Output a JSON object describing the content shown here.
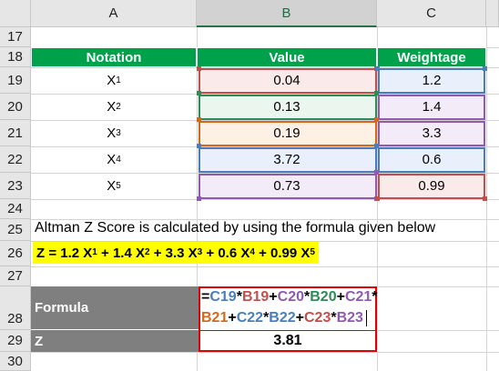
{
  "columns": [
    "A",
    "B",
    "C"
  ],
  "rows": [
    "17",
    "18",
    "19",
    "20",
    "21",
    "22",
    "23",
    "24",
    "25",
    "26",
    "27",
    "28",
    "29",
    "30"
  ],
  "table": {
    "headers": [
      "Notation",
      "Value",
      "Weightage"
    ],
    "rows": [
      {
        "notation": "X",
        "sub": "1",
        "value": "0.04",
        "weight": "1.2"
      },
      {
        "notation": "X",
        "sub": "2",
        "value": "0.13",
        "weight": "1.4"
      },
      {
        "notation": "X",
        "sub": "3",
        "value": "0.19",
        "weight": "3.3"
      },
      {
        "notation": "X",
        "sub": "4",
        "value": "3.72",
        "weight": "0.6"
      },
      {
        "notation": "X",
        "sub": "5",
        "value": "0.73",
        "weight": "0.99"
      }
    ]
  },
  "note": "Altman Z Score is calculated by using the formula given below",
  "formula_line": {
    "prefix": "Z = 1.2 X",
    "s1": "1",
    "p2": " + 1.4 X",
    "s2": "2",
    "p3": " + 3.3 X",
    "s3": "3",
    "p4": " + 0.6 X",
    "s4": "4",
    "p5": " + 0.99 X",
    "s5": "5"
  },
  "formula_label": "Formula",
  "z_label": "Z",
  "formula_parts": {
    "eq": "=",
    "c19": "C19",
    "b19": "B19",
    "c20": "C20",
    "b20": "B20",
    "c21": "C21",
    "b21": "B21",
    "c22": "C22",
    "b22": "B22",
    "c23": "C23",
    "b23": "B23",
    "mul": "*",
    "plus": "+"
  },
  "z_value": "3.81",
  "colors": {
    "header_green": "#00a14b",
    "r19": "#c0504d",
    "r20": "#2e8b57",
    "r21": "#d2691e",
    "r22": "#4a7ebb",
    "r23": "#8e5bb0",
    "highlight": "#ffff00",
    "formula_border": "#e00000"
  }
}
